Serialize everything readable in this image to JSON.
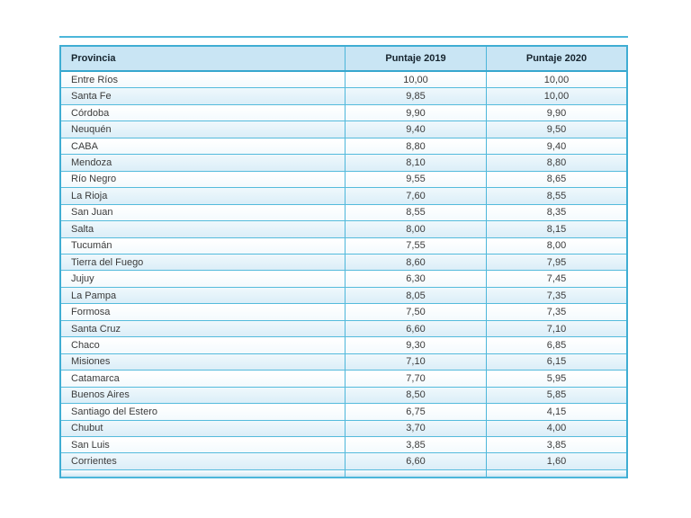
{
  "chart_data": {
    "type": "table",
    "title": "",
    "columns": [
      "Provincia",
      "Puntaje 2019",
      "Puntaje 2020"
    ],
    "rows": [
      {
        "provincia": "Entre Ríos",
        "puntaje_2019": "10,00",
        "puntaje_2020": "10,00"
      },
      {
        "provincia": "Santa Fe",
        "puntaje_2019": "9,85",
        "puntaje_2020": "10,00"
      },
      {
        "provincia": "Córdoba",
        "puntaje_2019": "9,90",
        "puntaje_2020": "9,90"
      },
      {
        "provincia": "Neuquén",
        "puntaje_2019": "9,40",
        "puntaje_2020": "9,50"
      },
      {
        "provincia": "CABA",
        "puntaje_2019": "8,80",
        "puntaje_2020": "9,40"
      },
      {
        "provincia": "Mendoza",
        "puntaje_2019": "8,10",
        "puntaje_2020": "8,80"
      },
      {
        "provincia": "Río Negro",
        "puntaje_2019": "9,55",
        "puntaje_2020": "8,65"
      },
      {
        "provincia": "La Rioja",
        "puntaje_2019": "7,60",
        "puntaje_2020": "8,55"
      },
      {
        "provincia": "San Juan",
        "puntaje_2019": "8,55",
        "puntaje_2020": "8,35"
      },
      {
        "provincia": "Salta",
        "puntaje_2019": "8,00",
        "puntaje_2020": "8,15"
      },
      {
        "provincia": "Tucumán",
        "puntaje_2019": "7,55",
        "puntaje_2020": "8,00"
      },
      {
        "provincia": "Tierra del Fuego",
        "puntaje_2019": "8,60",
        "puntaje_2020": "7,95"
      },
      {
        "provincia": "Jujuy",
        "puntaje_2019": "6,30",
        "puntaje_2020": "7,45"
      },
      {
        "provincia": "La Pampa",
        "puntaje_2019": "8,05",
        "puntaje_2020": "7,35"
      },
      {
        "provincia": "Formosa",
        "puntaje_2019": "7,50",
        "puntaje_2020": "7,35"
      },
      {
        "provincia": "Santa Cruz",
        "puntaje_2019": "6,60",
        "puntaje_2020": "7,10"
      },
      {
        "provincia": "Chaco",
        "puntaje_2019": "9,30",
        "puntaje_2020": "6,85"
      },
      {
        "provincia": "Misiones",
        "puntaje_2019": "7,10",
        "puntaje_2020": "6,15"
      },
      {
        "provincia": "Catamarca",
        "puntaje_2019": "7,70",
        "puntaje_2020": "5,95"
      },
      {
        "provincia": "Buenos Aires",
        "puntaje_2019": "8,50",
        "puntaje_2020": "5,85"
      },
      {
        "provincia": "Santiago del Estero",
        "puntaje_2019": "6,75",
        "puntaje_2020": "4,15"
      },
      {
        "provincia": "Chubut",
        "puntaje_2019": "3,70",
        "puntaje_2020": "4,00"
      },
      {
        "provincia": "San Luis",
        "puntaje_2019": "3,85",
        "puntaje_2020": "3,85"
      },
      {
        "provincia": "Corrientes",
        "puntaje_2019": "6,60",
        "puntaje_2020": "1,60"
      }
    ],
    "layout_hints": {
      "header_background": "#c9e5f4",
      "border_color": "#3fadd3",
      "alt_row_background": "#dbeef8",
      "row_background": "#ffffff",
      "header_text_color": "#16242e",
      "cell_text_color": "#3b3b3b",
      "striping": "even rows tinted blue, starting with white first row"
    }
  }
}
